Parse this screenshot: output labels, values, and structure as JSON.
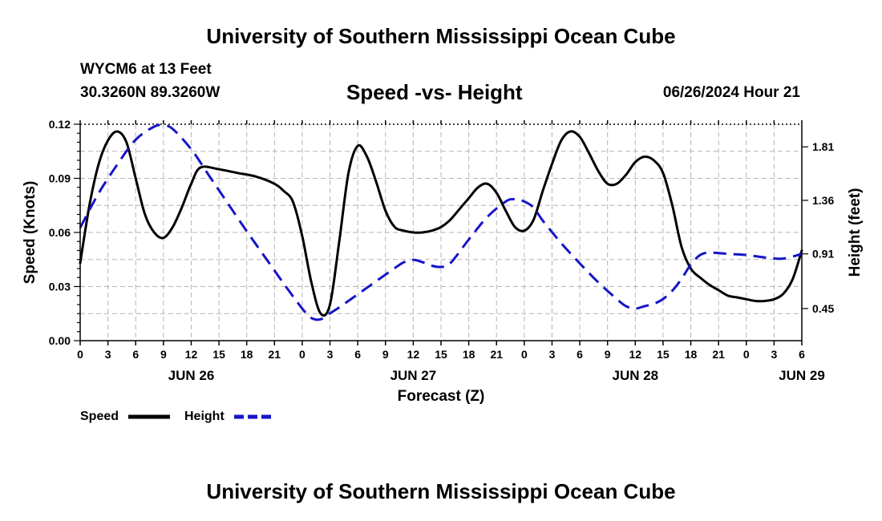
{
  "header": {
    "title_top": "University of Southern Mississippi Ocean Cube",
    "title_bottom": "University of Southern Mississippi Ocean Cube",
    "station_line1": "WYCM6 at 13 Feet",
    "station_line2": "30.3260N  89.3260W",
    "chart_title": "Speed -vs- Height",
    "datetime": "06/26/2024 Hour 21"
  },
  "chart_data": {
    "type": "line",
    "title": "Speed -vs- Height",
    "xlabel": "Forecast (Z)",
    "ylabel": "Speed (Knots)",
    "y2label": "Height (feet)",
    "xlim": [
      0,
      78
    ],
    "ylim": [
      0,
      0.12
    ],
    "y2lim": [
      0.18,
      2.0
    ],
    "grid": true,
    "x_tick_labels": [
      "0",
      "3",
      "6",
      "9",
      "12",
      "15",
      "18",
      "21",
      "0",
      "3",
      "6",
      "9",
      "12",
      "15",
      "18",
      "21",
      "0",
      "3",
      "6",
      "9",
      "12",
      "15",
      "18",
      "21",
      "0",
      "3",
      "6"
    ],
    "y_tick_values": [
      0.0,
      0.03,
      0.06,
      0.09,
      0.12
    ],
    "y_tick_labels": [
      "0.00",
      "0.03",
      "0.06",
      "0.09",
      "0.12"
    ],
    "y2_tick_values": [
      0.45,
      0.91,
      1.36,
      1.81
    ],
    "y2_tick_labels": [
      "0.45",
      "0.91",
      "1.36",
      "1.81"
    ],
    "date_labels": [
      {
        "label": "JUN 26",
        "hour": 12
      },
      {
        "label": "JUN 27",
        "hour": 36
      },
      {
        "label": "JUN 28",
        "hour": 60
      },
      {
        "label": "JUN 29",
        "hour": 78
      }
    ],
    "legend": [
      {
        "name": "Speed",
        "color": "#000000",
        "dash": false
      },
      {
        "name": "Height",
        "color": "#1515c8",
        "dash": true
      }
    ],
    "series": [
      {
        "name": "Speed",
        "axis": "left",
        "color": "#000000",
        "x": [
          0,
          1,
          2,
          3,
          4,
          5,
          6,
          7,
          8,
          9,
          10,
          11,
          12,
          13,
          15,
          17,
          19,
          21,
          22,
          23,
          24,
          25,
          26,
          27,
          28,
          29,
          30,
          31,
          32,
          33,
          34,
          35,
          36,
          37,
          38,
          39,
          40,
          41,
          42,
          43,
          44,
          45,
          46,
          47,
          48,
          49,
          50,
          51,
          52,
          53,
          54,
          55,
          56,
          57,
          58,
          59,
          60,
          61,
          62,
          63,
          64,
          65,
          66,
          67,
          68,
          69,
          70,
          71,
          72,
          73,
          74,
          75,
          76,
          77,
          78
        ],
        "values": [
          0.043,
          0.075,
          0.098,
          0.111,
          0.116,
          0.11,
          0.09,
          0.07,
          0.06,
          0.057,
          0.063,
          0.074,
          0.087,
          0.096,
          0.095,
          0.093,
          0.091,
          0.087,
          0.083,
          0.077,
          0.058,
          0.032,
          0.015,
          0.02,
          0.055,
          0.093,
          0.108,
          0.102,
          0.088,
          0.072,
          0.063,
          0.061,
          0.06,
          0.06,
          0.061,
          0.063,
          0.067,
          0.073,
          0.079,
          0.085,
          0.087,
          0.082,
          0.072,
          0.063,
          0.061,
          0.067,
          0.083,
          0.098,
          0.111,
          0.116,
          0.113,
          0.104,
          0.094,
          0.087,
          0.087,
          0.092,
          0.099,
          0.102,
          0.1,
          0.093,
          0.075,
          0.052,
          0.04,
          0.035,
          0.031,
          0.028,
          0.025,
          0.024,
          0.023,
          0.022,
          0.022,
          0.023,
          0.026,
          0.034,
          0.05
        ]
      },
      {
        "name": "Height",
        "axis": "right",
        "color": "#1515c8",
        "x": [
          0,
          2,
          4,
          6,
          8,
          9,
          10,
          12,
          14,
          16,
          18,
          20,
          22,
          24,
          25,
          26,
          27,
          28,
          30,
          32,
          34,
          35,
          36,
          37,
          38,
          39,
          40,
          42,
          44,
          46,
          47,
          48,
          49,
          50,
          52,
          54,
          56,
          58,
          59,
          60,
          61,
          62,
          63,
          64,
          65,
          66,
          67,
          68,
          70,
          72,
          74,
          76,
          78
        ],
        "values": [
          1.13,
          1.42,
          1.66,
          1.87,
          1.98,
          1.99,
          1.96,
          1.79,
          1.56,
          1.33,
          1.1,
          0.88,
          0.66,
          0.45,
          0.37,
          0.36,
          0.41,
          0.46,
          0.57,
          0.68,
          0.79,
          0.84,
          0.86,
          0.84,
          0.81,
          0.8,
          0.83,
          1.03,
          1.22,
          1.35,
          1.37,
          1.35,
          1.3,
          1.19,
          1.0,
          0.83,
          0.67,
          0.53,
          0.47,
          0.45,
          0.47,
          0.49,
          0.53,
          0.6,
          0.7,
          0.82,
          0.9,
          0.92,
          0.91,
          0.9,
          0.88,
          0.87,
          0.91
        ]
      }
    ]
  }
}
